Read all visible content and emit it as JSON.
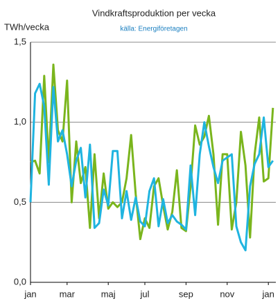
{
  "chart_data": {
    "type": "line",
    "title": "Vindkraftsproduktion per vecka",
    "subtitle": "källa: Energiföretagen",
    "y_label": "TWh/vecka",
    "categories": [
      "jan",
      null,
      null,
      null,
      null,
      null,
      null,
      null,
      "mar",
      null,
      null,
      null,
      null,
      null,
      null,
      null,
      null,
      "maj",
      null,
      null,
      null,
      null,
      null,
      null,
      null,
      "jul",
      null,
      null,
      null,
      null,
      null,
      null,
      null,
      null,
      "sep",
      null,
      null,
      null,
      null,
      null,
      null,
      null,
      null,
      "nov",
      null,
      null,
      null,
      null,
      null,
      null,
      null,
      null,
      "jan",
      null
    ],
    "series": [
      {
        "color": "#7ab51d",
        "values": [
          0.75,
          0.76,
          0.68,
          1.29,
          0.75,
          1.36,
          0.95,
          0.88,
          1.26,
          0.5,
          0.88,
          0.62,
          0.72,
          0.34,
          0.8,
          0.4,
          0.68,
          0.46,
          0.5,
          0.47,
          0.5,
          0.65,
          0.92,
          0.55,
          0.27,
          0.4,
          0.34,
          0.6,
          0.65,
          0.48,
          0.33,
          0.44,
          0.7,
          0.34,
          0.32,
          0.6,
          0.98,
          0.86,
          0.91,
          1.04,
          0.8,
          0.36,
          0.8,
          0.8,
          0.33,
          0.5,
          0.94,
          0.73,
          0.28,
          0.8,
          1.03,
          0.63,
          0.65,
          1.09
        ]
      },
      {
        "color": "#1fb4e0",
        "values": [
          0.5,
          1.18,
          1.24,
          1.1,
          0.61,
          1.22,
          0.88,
          0.95,
          0.8,
          0.6,
          0.76,
          0.84,
          0.53,
          0.86,
          0.34,
          0.37,
          0.58,
          0.48,
          0.82,
          0.82,
          0.4,
          0.57,
          0.39,
          0.53,
          0.38,
          0.35,
          0.57,
          0.65,
          0.35,
          0.52,
          0.37,
          0.42,
          0.38,
          0.36,
          0.33,
          0.73,
          0.42,
          0.8,
          1.0,
          0.85,
          0.72,
          0.62,
          0.76,
          0.78,
          0.8,
          0.35,
          0.25,
          0.2,
          0.6,
          0.74,
          0.8,
          1.03,
          0.72,
          0.76
        ]
      }
    ],
    "ylim": [
      0,
      1.5
    ],
    "yticks": [
      {
        "value": 0,
        "label": "0,0"
      },
      {
        "value": 0.5,
        "label": "0,5"
      },
      {
        "value": 1.0,
        "label": "1,0"
      },
      {
        "value": 1.5,
        "label": "1,5"
      }
    ],
    "grid": true
  }
}
